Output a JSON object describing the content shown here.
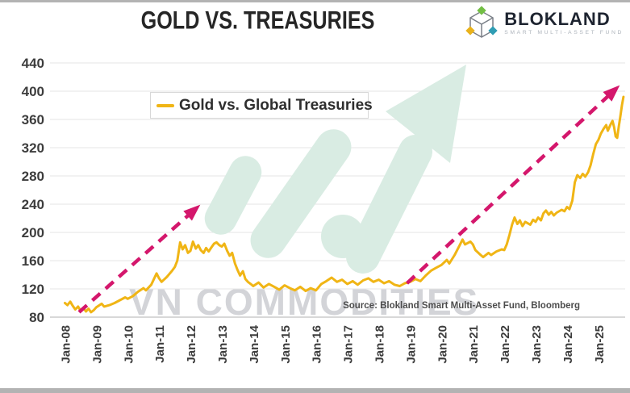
{
  "header": {
    "title": "GOLD VS. TREASURIES"
  },
  "brand": {
    "name": "BLOKLAND",
    "subtitle": "SMART MULTI-ASSET FUND"
  },
  "legend": {
    "label": "Gold vs. Global Treasuries"
  },
  "source_note": "Source: Blokland Smart Multi-Asset Fund, Bloomberg",
  "watermark": {
    "text": "VN COMMODITIES"
  },
  "colors": {
    "gold_line": "#F0B515",
    "trend_arrow_pink": "#D4176C",
    "watermark_green": "#D9ECE3",
    "grid_line": "#E6E6E6",
    "axis_line": "#CCCCCC",
    "tick_label": "#3D3D3D",
    "watermark_text_gray": "#D3D4D8",
    "brand_cube_green": "#72BE44",
    "brand_cube_yellow": "#E9B21B",
    "brand_cube_teal": "#2F9DB4"
  },
  "chart_data": {
    "type": "line",
    "title": "GOLD VS. TREASURIES",
    "xlabel": "",
    "ylabel": "",
    "grid": true,
    "legend_position": "top-left-inside",
    "x_tick_labels": [
      "Jan-08",
      "Jan-09",
      "Jan-10",
      "Jan-11",
      "Jan-12",
      "Jan-13",
      "Jan-14",
      "Jan-15",
      "Jan-16",
      "Jan-17",
      "Jan-18",
      "Jan-19",
      "Jan-20",
      "Jan-21",
      "Jan-22",
      "Jan-23",
      "Jan-24",
      "Jan-25"
    ],
    "y_ticks": [
      80,
      120,
      160,
      200,
      240,
      280,
      320,
      360,
      400,
      440
    ],
    "ylim": [
      80,
      440
    ],
    "xlim_years": [
      2008,
      2025.85
    ],
    "series": [
      {
        "name": "Gold vs. Global Treasuries",
        "points": [
          [
            2008.0,
            100
          ],
          [
            2008.08,
            97
          ],
          [
            2008.17,
            102
          ],
          [
            2008.25,
            96
          ],
          [
            2008.33,
            91
          ],
          [
            2008.42,
            95
          ],
          [
            2008.5,
            89
          ],
          [
            2008.58,
            93
          ],
          [
            2008.67,
            88
          ],
          [
            2008.75,
            92
          ],
          [
            2008.83,
            87
          ],
          [
            2008.92,
            90
          ],
          [
            2009.0,
            94
          ],
          [
            2009.17,
            99
          ],
          [
            2009.25,
            95
          ],
          [
            2009.42,
            97
          ],
          [
            2009.58,
            100
          ],
          [
            2009.75,
            104
          ],
          [
            2009.92,
            108
          ],
          [
            2010.0,
            106
          ],
          [
            2010.17,
            110
          ],
          [
            2010.33,
            116
          ],
          [
            2010.5,
            121
          ],
          [
            2010.58,
            118
          ],
          [
            2010.75,
            126
          ],
          [
            2010.92,
            142
          ],
          [
            2011.0,
            135
          ],
          [
            2011.08,
            130
          ],
          [
            2011.25,
            137
          ],
          [
            2011.42,
            146
          ],
          [
            2011.5,
            151
          ],
          [
            2011.58,
            160
          ],
          [
            2011.67,
            186
          ],
          [
            2011.75,
            176
          ],
          [
            2011.83,
            182
          ],
          [
            2011.92,
            171
          ],
          [
            2012.0,
            174
          ],
          [
            2012.08,
            187
          ],
          [
            2012.17,
            177
          ],
          [
            2012.25,
            182
          ],
          [
            2012.33,
            175
          ],
          [
            2012.42,
            171
          ],
          [
            2012.5,
            178
          ],
          [
            2012.58,
            173
          ],
          [
            2012.67,
            179
          ],
          [
            2012.75,
            184
          ],
          [
            2012.83,
            186
          ],
          [
            2012.92,
            182
          ],
          [
            2013.0,
            180
          ],
          [
            2013.08,
            184
          ],
          [
            2013.17,
            174
          ],
          [
            2013.25,
            167
          ],
          [
            2013.33,
            171
          ],
          [
            2013.42,
            156
          ],
          [
            2013.5,
            147
          ],
          [
            2013.58,
            139
          ],
          [
            2013.67,
            145
          ],
          [
            2013.75,
            134
          ],
          [
            2013.83,
            130
          ],
          [
            2013.92,
            127
          ],
          [
            2014.0,
            124
          ],
          [
            2014.17,
            129
          ],
          [
            2014.33,
            122
          ],
          [
            2014.5,
            127
          ],
          [
            2014.67,
            123
          ],
          [
            2014.83,
            119
          ],
          [
            2015.0,
            125
          ],
          [
            2015.17,
            121
          ],
          [
            2015.33,
            118
          ],
          [
            2015.5,
            123
          ],
          [
            2015.67,
            117
          ],
          [
            2015.83,
            121
          ],
          [
            2016.0,
            118
          ],
          [
            2016.17,
            127
          ],
          [
            2016.33,
            131
          ],
          [
            2016.5,
            136
          ],
          [
            2016.67,
            130
          ],
          [
            2016.83,
            133
          ],
          [
            2017.0,
            127
          ],
          [
            2017.17,
            131
          ],
          [
            2017.33,
            126
          ],
          [
            2017.5,
            132
          ],
          [
            2017.67,
            135
          ],
          [
            2017.83,
            130
          ],
          [
            2018.0,
            133
          ],
          [
            2018.17,
            128
          ],
          [
            2018.33,
            131
          ],
          [
            2018.5,
            126
          ],
          [
            2018.67,
            124
          ],
          [
            2018.83,
            128
          ],
          [
            2019.0,
            130
          ],
          [
            2019.17,
            134
          ],
          [
            2019.33,
            131
          ],
          [
            2019.5,
            139
          ],
          [
            2019.67,
            146
          ],
          [
            2019.83,
            150
          ],
          [
            2020.0,
            154
          ],
          [
            2020.17,
            161
          ],
          [
            2020.25,
            156
          ],
          [
            2020.42,
            168
          ],
          [
            2020.58,
            182
          ],
          [
            2020.67,
            190
          ],
          [
            2020.75,
            183
          ],
          [
            2020.92,
            187
          ],
          [
            2021.0,
            183
          ],
          [
            2021.08,
            175
          ],
          [
            2021.25,
            168
          ],
          [
            2021.33,
            165
          ],
          [
            2021.5,
            171
          ],
          [
            2021.58,
            168
          ],
          [
            2021.75,
            173
          ],
          [
            2021.92,
            176
          ],
          [
            2022.0,
            175
          ],
          [
            2022.08,
            183
          ],
          [
            2022.17,
            197
          ],
          [
            2022.25,
            211
          ],
          [
            2022.33,
            221
          ],
          [
            2022.42,
            212
          ],
          [
            2022.5,
            217
          ],
          [
            2022.58,
            209
          ],
          [
            2022.67,
            215
          ],
          [
            2022.83,
            211
          ],
          [
            2022.92,
            218
          ],
          [
            2023.0,
            215
          ],
          [
            2023.08,
            221
          ],
          [
            2023.17,
            217
          ],
          [
            2023.25,
            227
          ],
          [
            2023.33,
            231
          ],
          [
            2023.42,
            225
          ],
          [
            2023.5,
            229
          ],
          [
            2023.58,
            224
          ],
          [
            2023.67,
            228
          ],
          [
            2023.83,
            232
          ],
          [
            2023.92,
            230
          ],
          [
            2024.0,
            236
          ],
          [
            2024.08,
            233
          ],
          [
            2024.17,
            245
          ],
          [
            2024.25,
            271
          ],
          [
            2024.33,
            281
          ],
          [
            2024.42,
            277
          ],
          [
            2024.5,
            283
          ],
          [
            2024.58,
            279
          ],
          [
            2024.67,
            285
          ],
          [
            2024.75,
            295
          ],
          [
            2024.83,
            310
          ],
          [
            2024.92,
            325
          ],
          [
            2025.0,
            331
          ],
          [
            2025.08,
            340
          ],
          [
            2025.17,
            347
          ],
          [
            2025.25,
            352
          ],
          [
            2025.3,
            344
          ],
          [
            2025.4,
            354
          ],
          [
            2025.45,
            358
          ],
          [
            2025.5,
            349
          ],
          [
            2025.55,
            336
          ],
          [
            2025.6,
            334
          ],
          [
            2025.65,
            350
          ],
          [
            2025.7,
            364
          ],
          [
            2025.75,
            380
          ],
          [
            2025.8,
            392
          ]
        ]
      }
    ],
    "annotations": [
      {
        "type": "trend-arrow",
        "from": [
          2008.45,
          87
        ],
        "to": [
          2012.18,
          234
        ]
      },
      {
        "type": "trend-arrow",
        "from": [
          2018.9,
          128
        ],
        "to": [
          2025.55,
          403
        ]
      }
    ]
  }
}
